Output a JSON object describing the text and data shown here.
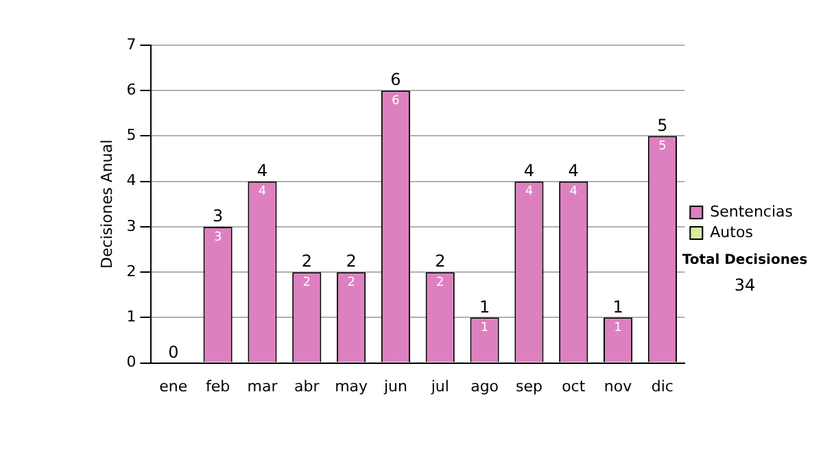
{
  "chart_data": {
    "type": "bar",
    "stacked": true,
    "ylabel": "Decisiones Anual",
    "categories": [
      "ene",
      "feb",
      "mar",
      "abr",
      "may",
      "jun",
      "jul",
      "ago",
      "sep",
      "oct",
      "nov",
      "dic"
    ],
    "series": [
      {
        "name": "Sentencias",
        "color": "#dd80c0",
        "values": [
          0,
          3,
          4,
          2,
          2,
          6,
          2,
          1,
          4,
          4,
          1,
          5
        ],
        "value_labels": [
          null,
          "3",
          "4",
          "2",
          "2",
          "6",
          "2",
          "1",
          "4",
          "4",
          "1",
          "5"
        ]
      },
      {
        "name": "Autos",
        "color": "#d8eca0",
        "values": [
          0,
          0,
          0,
          0,
          0,
          0,
          0,
          0,
          0,
          0,
          0,
          0
        ]
      }
    ],
    "totals": [
      "0",
      "3",
      "4",
      "2",
      "2",
      "6",
      "2",
      "1",
      "4",
      "4",
      "1",
      "5"
    ],
    "ylim": [
      0,
      7
    ],
    "yticks": [
      0,
      1,
      2,
      3,
      4,
      5,
      6,
      7
    ],
    "grid": "y",
    "legend": "right",
    "annotations": [
      "Total Decisiones",
      "34"
    ]
  }
}
